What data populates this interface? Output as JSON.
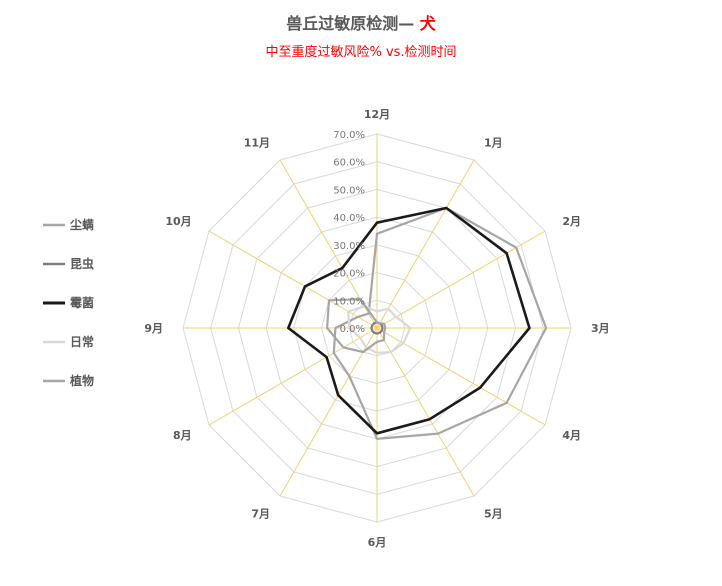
{
  "header": {
    "title_main": "兽丘过敏原检测— ",
    "title_accent": "犬",
    "subtitle": "中至重度过敏风险% vs.检测时间"
  },
  "colors": {
    "grid": "#d9d9d9",
    "spokes": "#f5d06f",
    "title_accent": "#ff0000"
  },
  "chart_data": {
    "type": "radar",
    "title": "兽丘过敏原检测— 犬",
    "subtitle": "中至重度过敏风险% vs.检测时间",
    "categories": [
      "12月",
      "1月",
      "2月",
      "3月",
      "4月",
      "5月",
      "6月",
      "7月",
      "8月",
      "9月",
      "10月",
      "11月"
    ],
    "radial_range": [
      0,
      70
    ],
    "radial_ticks": [
      "0.0%",
      "10.0%",
      "20.0%",
      "30.0%",
      "40.0%",
      "50.0%",
      "60.0%",
      "70.0%"
    ],
    "grid": true,
    "legend_position": "left",
    "series": [
      {
        "name": "尘螨",
        "color": "#a6a6a6",
        "values": [
          34.0,
          50.0,
          58.0,
          61.0,
          54.0,
          44.0,
          40.0,
          20.0,
          18.0,
          15.0,
          8.0,
          6.0
        ]
      },
      {
        "name": "昆虫",
        "color": "#7f7f7f",
        "values": [
          2.0,
          2.0,
          2.0,
          2.0,
          2.0,
          2.0,
          2.0,
          2.0,
          2.0,
          2.0,
          2.0,
          2.0
        ]
      },
      {
        "name": "霉菌",
        "color": "#1a1a1a",
        "values": [
          38.0,
          50.0,
          54.0,
          55.0,
          43.0,
          38.0,
          38.0,
          28.0,
          21.0,
          32.0,
          30.0,
          25.0
        ]
      },
      {
        "name": "日常",
        "color": "#d9d9d9",
        "values": [
          6.0,
          8.0,
          8.0,
          12.0,
          11.0,
          10.0,
          9.0,
          8.0,
          7.0,
          10.0,
          12.0,
          9.0
        ]
      },
      {
        "name": "植物",
        "color": "#a6a6a6",
        "values": [
          2.0,
          2.0,
          3.0,
          3.0,
          3.0,
          5.0,
          5.0,
          10.0,
          14.0,
          18.0,
          20.0,
          12.0
        ]
      }
    ]
  }
}
